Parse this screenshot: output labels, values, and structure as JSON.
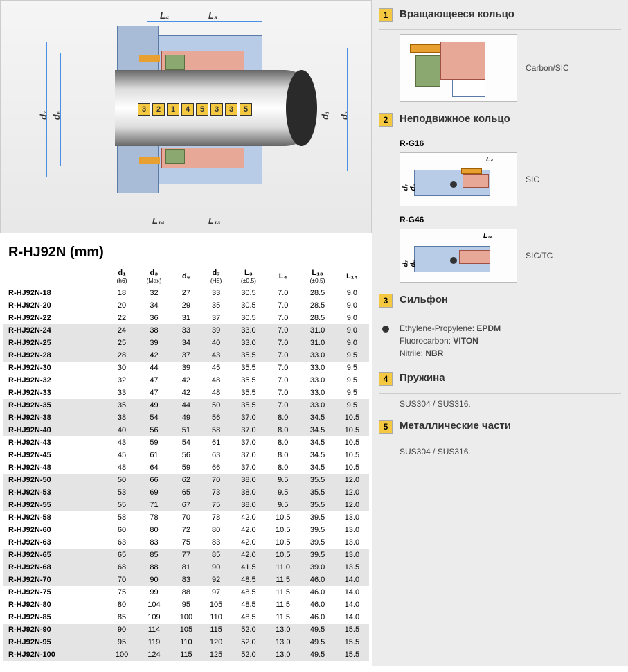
{
  "table": {
    "title": "R-HJ92N (mm)",
    "columns": [
      {
        "label": "",
        "sub": ""
      },
      {
        "label": "d₁",
        "sub": "(h6)"
      },
      {
        "label": "d₃",
        "sub": "(Max)"
      },
      {
        "label": "d₆",
        "sub": ""
      },
      {
        "label": "d₇",
        "sub": "(H8)"
      },
      {
        "label": "L₃",
        "sub": "(±0.5)"
      },
      {
        "label": "L₄",
        "sub": ""
      },
      {
        "label": "L₁₃",
        "sub": "(±0.5)"
      },
      {
        "label": "L₁₄",
        "sub": ""
      }
    ],
    "rows": [
      [
        "R-HJ92N-18",
        "18",
        "32",
        "27",
        "33",
        "30.5",
        "7.0",
        "28.5",
        "9.0"
      ],
      [
        "R-HJ92N-20",
        "20",
        "34",
        "29",
        "35",
        "30.5",
        "7.0",
        "28.5",
        "9.0"
      ],
      [
        "R-HJ92N-22",
        "22",
        "36",
        "31",
        "37",
        "30.5",
        "7.0",
        "28.5",
        "9.0"
      ],
      [
        "R-HJ92N-24",
        "24",
        "38",
        "33",
        "39",
        "33.0",
        "7.0",
        "31.0",
        "9.0"
      ],
      [
        "R-HJ92N-25",
        "25",
        "39",
        "34",
        "40",
        "33.0",
        "7.0",
        "31.0",
        "9.0"
      ],
      [
        "R-HJ92N-28",
        "28",
        "42",
        "37",
        "43",
        "35.5",
        "7.0",
        "33.0",
        "9.5"
      ],
      [
        "R-HJ92N-30",
        "30",
        "44",
        "39",
        "45",
        "35.5",
        "7.0",
        "33.0",
        "9.5"
      ],
      [
        "R-HJ92N-32",
        "32",
        "47",
        "42",
        "48",
        "35.5",
        "7.0",
        "33.0",
        "9.5"
      ],
      [
        "R-HJ92N-33",
        "33",
        "47",
        "42",
        "48",
        "35.5",
        "7.0",
        "33.0",
        "9.5"
      ],
      [
        "R-HJ92N-35",
        "35",
        "49",
        "44",
        "50",
        "35.5",
        "7.0",
        "33.0",
        "9.5"
      ],
      [
        "R-HJ92N-38",
        "38",
        "54",
        "49",
        "56",
        "37.0",
        "8.0",
        "34.5",
        "10.5"
      ],
      [
        "R-HJ92N-40",
        "40",
        "56",
        "51",
        "58",
        "37.0",
        "8.0",
        "34.5",
        "10.5"
      ],
      [
        "R-HJ92N-43",
        "43",
        "59",
        "54",
        "61",
        "37.0",
        "8.0",
        "34.5",
        "10.5"
      ],
      [
        "R-HJ92N-45",
        "45",
        "61",
        "56",
        "63",
        "37.0",
        "8.0",
        "34.5",
        "10.5"
      ],
      [
        "R-HJ92N-48",
        "48",
        "64",
        "59",
        "66",
        "37.0",
        "8.0",
        "34.5",
        "10.5"
      ],
      [
        "R-HJ92N-50",
        "50",
        "66",
        "62",
        "70",
        "38.0",
        "9.5",
        "35.5",
        "12.0"
      ],
      [
        "R-HJ92N-53",
        "53",
        "69",
        "65",
        "73",
        "38.0",
        "9.5",
        "35.5",
        "12.0"
      ],
      [
        "R-HJ92N-55",
        "55",
        "71",
        "67",
        "75",
        "38.0",
        "9.5",
        "35.5",
        "12.0"
      ],
      [
        "R-HJ92N-58",
        "58",
        "78",
        "70",
        "78",
        "42.0",
        "10.5",
        "39.5",
        "13.0"
      ],
      [
        "R-HJ92N-60",
        "60",
        "80",
        "72",
        "80",
        "42.0",
        "10.5",
        "39.5",
        "13.0"
      ],
      [
        "R-HJ92N-63",
        "63",
        "83",
        "75",
        "83",
        "42.0",
        "10.5",
        "39.5",
        "13.0"
      ],
      [
        "R-HJ92N-65",
        "65",
        "85",
        "77",
        "85",
        "42.0",
        "10.5",
        "39.5",
        "13.0"
      ],
      [
        "R-HJ92N-68",
        "68",
        "88",
        "81",
        "90",
        "41.5",
        "11.0",
        "39.0",
        "13.5"
      ],
      [
        "R-HJ92N-70",
        "70",
        "90",
        "83",
        "92",
        "48.5",
        "11.5",
        "46.0",
        "14.0"
      ],
      [
        "R-HJ92N-75",
        "75",
        "99",
        "88",
        "97",
        "48.5",
        "11.5",
        "46.0",
        "14.0"
      ],
      [
        "R-HJ92N-80",
        "80",
        "104",
        "95",
        "105",
        "48.5",
        "11.5",
        "46.0",
        "14.0"
      ],
      [
        "R-HJ92N-85",
        "85",
        "109",
        "100",
        "110",
        "48.5",
        "11.5",
        "46.0",
        "14.0"
      ],
      [
        "R-HJ92N-90",
        "90",
        "114",
        "105",
        "115",
        "52.0",
        "13.0",
        "49.5",
        "15.5"
      ],
      [
        "R-HJ92N-95",
        "95",
        "119",
        "110",
        "120",
        "52.0",
        "13.0",
        "49.5",
        "15.5"
      ],
      [
        "R-HJ92N-100",
        "100",
        "124",
        "115",
        "125",
        "52.0",
        "13.0",
        "49.5",
        "15.5"
      ]
    ],
    "shade_groups": [
      [
        3,
        5
      ],
      [
        9,
        11
      ],
      [
        15,
        17
      ],
      [
        21,
        23
      ],
      [
        27,
        29
      ]
    ]
  },
  "callouts": [
    "3",
    "2",
    "1",
    "4",
    "5",
    "3",
    "3",
    "5"
  ],
  "legend": {
    "1": {
      "title": "Вращающееся кольцо",
      "mat": "Carbon/SIC"
    },
    "2": {
      "title": "Неподвижное кольцо",
      "g16": "R-G16",
      "g16_mat": "SIC",
      "g46": "R-G46",
      "g46_mat": "SIC/TC"
    },
    "3": {
      "title": "Сильфон",
      "lines": [
        "Ethylene-Propylene: EPDM",
        "Fluorocarbon: VITON",
        "Nitrile: NBR"
      ],
      "bold": [
        "EPDM",
        "VITON",
        "NBR"
      ]
    },
    "4": {
      "title": "Пружина",
      "body": "SUS304 / SUS316."
    },
    "5": {
      "title": "Металлические части",
      "body": "SUS304 / SUS316."
    }
  },
  "dims": {
    "L3": "L₃",
    "L4": "L₄",
    "L13": "L₁₃",
    "L14": "L₁₄",
    "d1": "d₁",
    "d3": "d₃",
    "d6": "d₆",
    "d7": "d₇"
  },
  "colors": {
    "callout": "#f5c842",
    "blue": "#b8cce8",
    "pink": "#e8a898",
    "green": "#8aa870",
    "orange": "#e8a030"
  }
}
